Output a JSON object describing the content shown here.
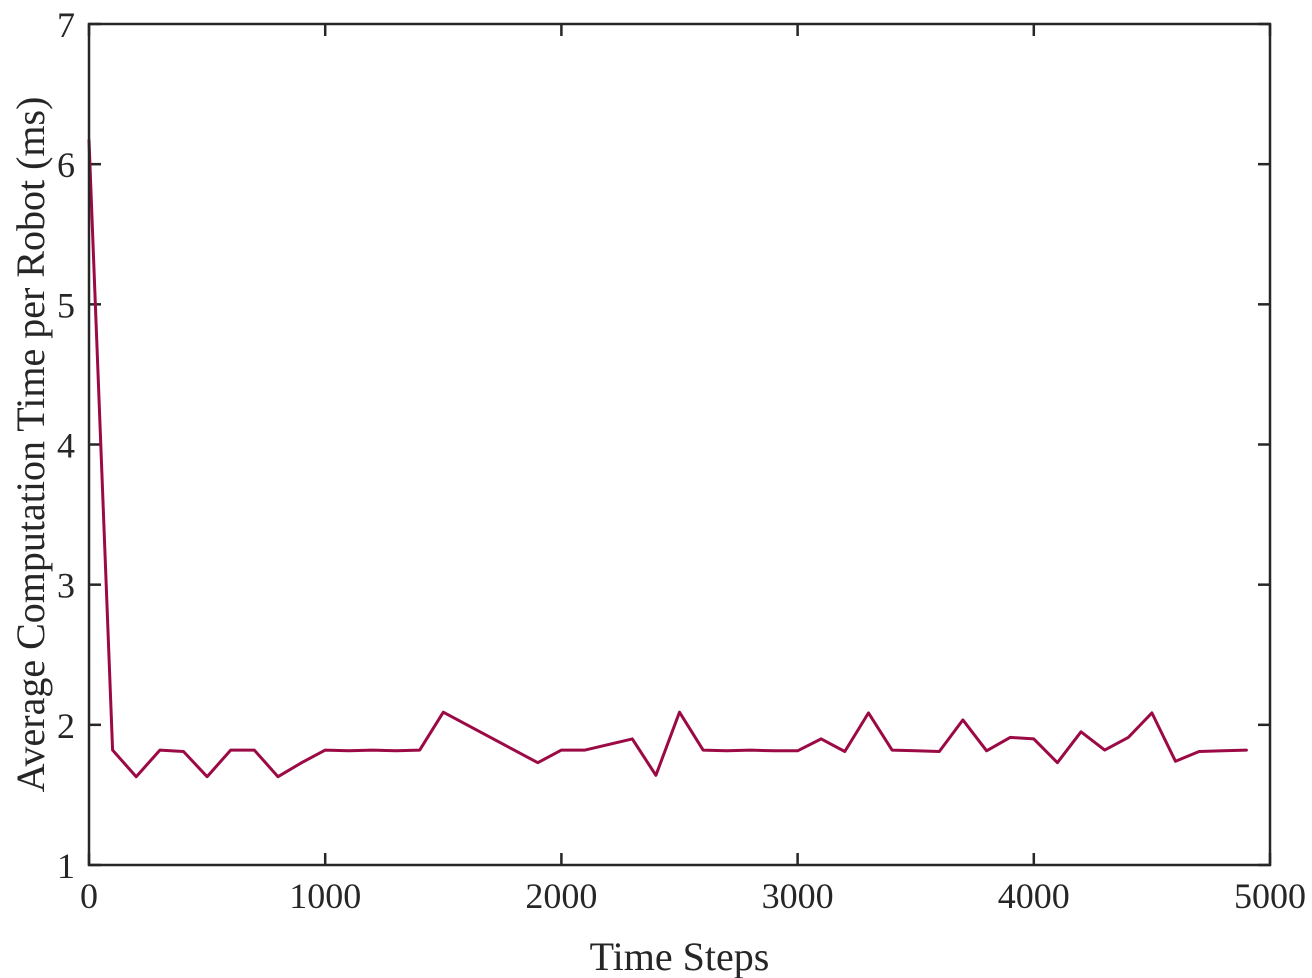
{
  "chart_data": {
    "type": "line",
    "title": "",
    "xlabel": "Time Steps",
    "ylabel": "Average Computation Time per Robot (ms)",
    "xlim": [
      0,
      5000
    ],
    "ylim": [
      1,
      7
    ],
    "xticks": [
      0,
      1000,
      2000,
      3000,
      4000,
      5000
    ],
    "yticks": [
      1,
      2,
      3,
      4,
      5,
      6,
      7
    ],
    "grid": false,
    "legend": "none",
    "color": "#9b0a44",
    "series": [
      {
        "x": [
          0,
          100,
          200,
          300,
          400,
          500,
          600,
          700,
          800,
          900,
          1000,
          1100,
          1200,
          1300,
          1400,
          1500,
          1900,
          2000,
          2100,
          2300,
          2400,
          2500,
          2600,
          2700,
          2800,
          2900,
          3000,
          3100,
          3200,
          3300,
          3400,
          3500,
          3600,
          3700,
          3800,
          3900,
          4000,
          4100,
          4200,
          4300,
          4400,
          4500,
          4600,
          4700,
          4800,
          4900
        ],
        "values": [
          6.17,
          1.82,
          1.63,
          1.82,
          1.81,
          1.63,
          1.82,
          1.82,
          1.63,
          1.73,
          1.82,
          1.815,
          1.82,
          1.815,
          1.82,
          2.09,
          1.73,
          1.82,
          1.82,
          1.9,
          1.64,
          2.09,
          1.82,
          1.815,
          1.82,
          1.815,
          1.815,
          1.9,
          1.81,
          2.085,
          1.82,
          1.815,
          1.81,
          2.035,
          1.815,
          1.91,
          1.9,
          1.73,
          1.95,
          1.82,
          1.91,
          2.085,
          1.74,
          1.81,
          1.815,
          1.82
        ]
      }
    ]
  }
}
